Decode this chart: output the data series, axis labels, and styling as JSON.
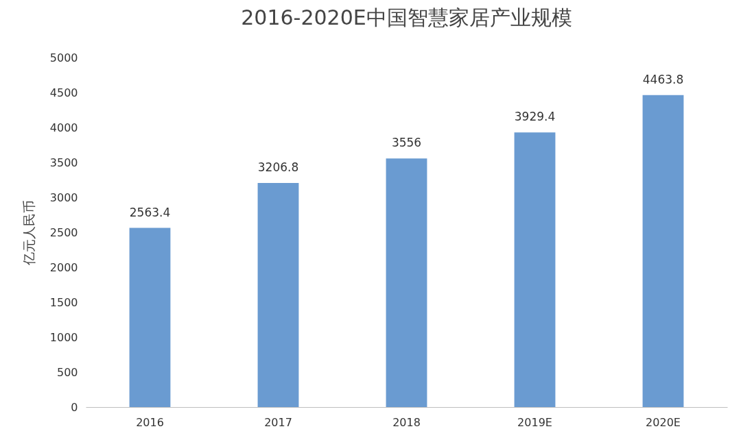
{
  "chart_data": {
    "type": "bar",
    "title": "2016-2020E中国智慧家居产业规模",
    "ylabel": "亿元人民币",
    "categories": [
      "2016",
      "2017",
      "2018",
      "2019E",
      "2020E"
    ],
    "values": [
      2563.4,
      3206.8,
      3556,
      3929.4,
      4463.8
    ],
    "color": "#6a9bd1",
    "ylim": [
      0,
      5000
    ],
    "yticks": [
      0,
      500,
      1000,
      1500,
      2000,
      2500,
      3000,
      3500,
      4000,
      4500,
      5000
    ],
    "grid": false,
    "data_labels": true
  }
}
